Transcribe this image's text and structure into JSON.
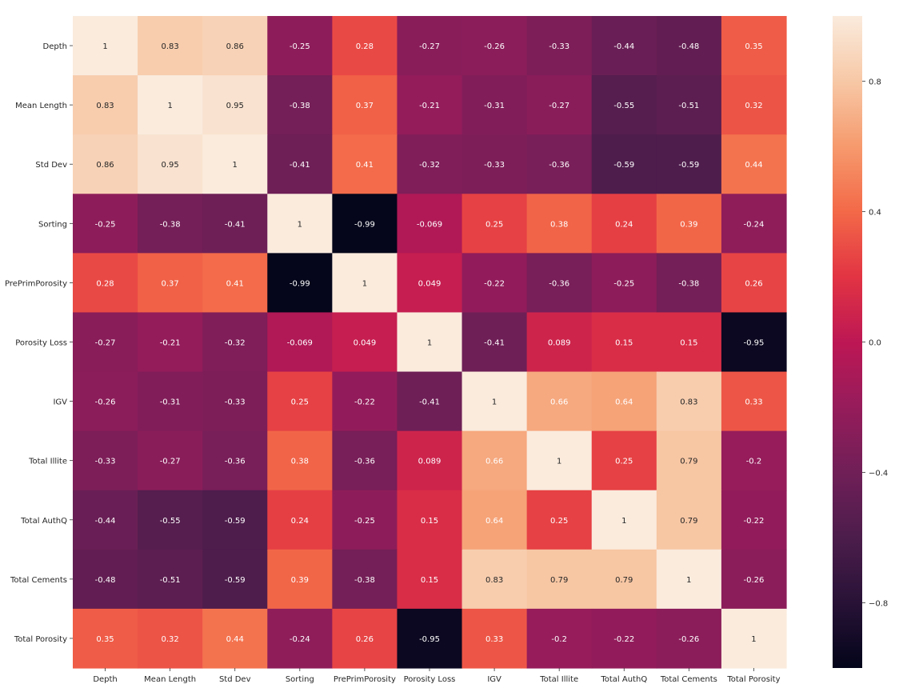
{
  "chart_data": {
    "type": "heatmap",
    "title": "",
    "xlabel": "",
    "ylabel": "",
    "colormap": "rocket",
    "vmin": -1,
    "vmax": 1,
    "rows": [
      "Depth",
      "Mean Length",
      "Std Dev",
      "Sorting",
      "PrePrimPorosity",
      "Porosity Loss",
      "IGV",
      "Total Illite",
      "Total AuthQ",
      "Total Cements",
      "Total Porosity"
    ],
    "columns": [
      "Depth",
      "Mean Length",
      "Std Dev",
      "Sorting",
      "PrePrimPorosity",
      "Porosity Loss",
      "IGV",
      "Total Illite",
      "Total AuthQ",
      "Total Cements",
      "Total Porosity"
    ],
    "values": [
      [
        1,
        0.83,
        0.86,
        -0.25,
        0.28,
        -0.27,
        -0.26,
        -0.33,
        -0.44,
        -0.48,
        0.35
      ],
      [
        0.83,
        1,
        0.95,
        -0.38,
        0.37,
        -0.21,
        -0.31,
        -0.27,
        -0.55,
        -0.51,
        0.32
      ],
      [
        0.86,
        0.95,
        1,
        -0.41,
        0.41,
        -0.32,
        -0.33,
        -0.36,
        -0.59,
        -0.59,
        0.44
      ],
      [
        -0.25,
        -0.38,
        -0.41,
        1,
        -0.99,
        -0.069,
        0.25,
        0.38,
        0.24,
        0.39,
        -0.24
      ],
      [
        0.28,
        0.37,
        0.41,
        -0.99,
        1,
        0.049,
        -0.22,
        -0.36,
        -0.25,
        -0.38,
        0.26
      ],
      [
        -0.27,
        -0.21,
        -0.32,
        -0.069,
        0.049,
        1,
        -0.41,
        0.089,
        0.15,
        0.15,
        -0.95
      ],
      [
        -0.26,
        -0.31,
        -0.33,
        0.25,
        -0.22,
        -0.41,
        1,
        0.66,
        0.64,
        0.83,
        0.33
      ],
      [
        -0.33,
        -0.27,
        -0.36,
        0.38,
        -0.36,
        0.089,
        0.66,
        1,
        0.25,
        0.79,
        -0.2
      ],
      [
        -0.44,
        -0.55,
        -0.59,
        0.24,
        -0.25,
        0.15,
        0.64,
        0.25,
        1,
        0.79,
        -0.22
      ],
      [
        -0.48,
        -0.51,
        -0.59,
        0.39,
        -0.38,
        0.15,
        0.83,
        0.79,
        0.79,
        1,
        -0.26
      ],
      [
        0.35,
        0.32,
        0.44,
        -0.24,
        0.26,
        -0.95,
        0.33,
        -0.2,
        -0.22,
        -0.26,
        1
      ]
    ],
    "annotations": [
      [
        "1",
        "0.83",
        "0.86",
        "-0.25",
        "0.28",
        "-0.27",
        "-0.26",
        "-0.33",
        "-0.44",
        "-0.48",
        "0.35"
      ],
      [
        "0.83",
        "1",
        "0.95",
        "-0.38",
        "0.37",
        "-0.21",
        "-0.31",
        "-0.27",
        "-0.55",
        "-0.51",
        "0.32"
      ],
      [
        "0.86",
        "0.95",
        "1",
        "-0.41",
        "0.41",
        "-0.32",
        "-0.33",
        "-0.36",
        "-0.59",
        "-0.59",
        "0.44"
      ],
      [
        "-0.25",
        "-0.38",
        "-0.41",
        "1",
        "-0.99",
        "-0.069",
        "0.25",
        "0.38",
        "0.24",
        "0.39",
        "-0.24"
      ],
      [
        "0.28",
        "0.37",
        "0.41",
        "-0.99",
        "1",
        "0.049",
        "-0.22",
        "-0.36",
        "-0.25",
        "-0.38",
        "0.26"
      ],
      [
        "-0.27",
        "-0.21",
        "-0.32",
        "-0.069",
        "0.049",
        "1",
        "-0.41",
        "0.089",
        "0.15",
        "0.15",
        "-0.95"
      ],
      [
        "-0.26",
        "-0.31",
        "-0.33",
        "0.25",
        "-0.22",
        "-0.41",
        "1",
        "0.66",
        "0.64",
        "0.83",
        "0.33"
      ],
      [
        "-0.33",
        "-0.27",
        "-0.36",
        "0.38",
        "-0.36",
        "0.089",
        "0.66",
        "1",
        "0.25",
        "0.79",
        "-0.2"
      ],
      [
        "-0.44",
        "-0.55",
        "-0.59",
        "0.24",
        "-0.25",
        "0.15",
        "0.64",
        "0.25",
        "1",
        "0.79",
        "-0.22"
      ],
      [
        "-0.48",
        "-0.51",
        "-0.59",
        "0.39",
        "-0.38",
        "0.15",
        "0.83",
        "0.79",
        "0.79",
        "1",
        "-0.26"
      ],
      [
        "0.35",
        "0.32",
        "0.44",
        "-0.24",
        "0.26",
        "-0.95",
        "0.33",
        "-0.2",
        "-0.22",
        "-0.26",
        "1"
      ]
    ],
    "colorbar": {
      "ticks": [
        0.8,
        0.4,
        0.0,
        -0.4,
        -0.8
      ],
      "tick_labels": [
        "0.8",
        "0.4",
        "0.0",
        "−0.4",
        "−0.8"
      ],
      "placement": "right"
    },
    "grid": false,
    "legend": "none"
  }
}
